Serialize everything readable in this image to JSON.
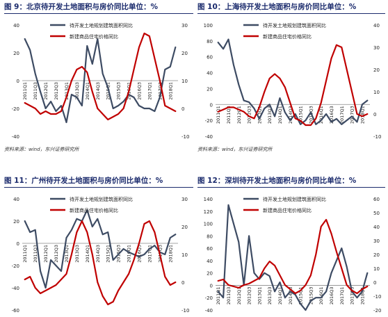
{
  "legend_labels": [
    "待开发土地规划建筑面积同比",
    "新建商品住宅价格同比"
  ],
  "colors": {
    "series1": "#3d4b63",
    "series2": "#c00000",
    "title": "#1a2a6c"
  },
  "source_note": "资料来源：wind，东兴证券研究所",
  "chart_data": [
    {
      "type": "line",
      "title": "图 9：北京待开发土地面积与房价同比单位：%",
      "categories": [
        "2011Q1",
        "2011Q2",
        "2011Q3",
        "2011Q4",
        "2012Q1",
        "2012Q2",
        "2012Q3",
        "2012Q4",
        "2013Q1",
        "2013Q2",
        "2013Q3",
        "2013Q4",
        "2014Q1",
        "2014Q2",
        "2014Q3",
        "2014Q4",
        "2015Q1",
        "2015Q2",
        "2015Q3",
        "2015Q4",
        "2016Q1",
        "2016Q2",
        "2016Q3",
        "2016Q4",
        "2017Q1",
        "2017Q2",
        "2017Q3",
        "2017Q4",
        "2018Q1",
        "2018Q2"
      ],
      "tick_labels": [
        "2011Q1",
        "2011Q3",
        "2012Q1",
        "2012Q3",
        "2013Q1",
        "2013Q3",
        "2014Q1",
        "2014Q3",
        "2015Q1",
        "2015Q3",
        "2016Q1",
        "2016Q3",
        "2017Q1",
        "2017Q3",
        "2018Q1"
      ],
      "yleft_ticks": [
        "40",
        "20",
        "0",
        "-20",
        "-40"
      ],
      "yright_ticks": [
        "30",
        "20",
        "10",
        "0",
        "-10"
      ],
      "yleft_lim": [
        -40,
        40
      ],
      "yright_lim": [
        -10,
        30
      ],
      "series": [
        {
          "name": "待开发土地规划建筑面积同比",
          "axis": "left",
          "values": [
            30,
            22,
            5,
            -8,
            -20,
            -15,
            -22,
            -18,
            -30,
            -10,
            -12,
            -18,
            25,
            12,
            30,
            5,
            -5,
            -20,
            -18,
            -15,
            -10,
            -12,
            -18,
            -20,
            -20,
            -22,
            -12,
            8,
            10,
            24
          ]
        },
        {
          "name": "新建商品住宅价格同比",
          "axis": "right",
          "values": [
            2,
            1,
            0,
            -2,
            -1,
            -2,
            -2,
            -1,
            4,
            10,
            14,
            15,
            13,
            6,
            0,
            -2,
            -4,
            -3,
            -2,
            0,
            6,
            14,
            22,
            27,
            26,
            18,
            10,
            1,
            0,
            -1
          ]
        }
      ]
    },
    {
      "type": "line",
      "title": "图 10：上海待开发土地面积与房价同比单位：%",
      "categories": [
        "2011Q1",
        "2011Q2",
        "2011Q3",
        "2011Q4",
        "2012Q1",
        "2012Q2",
        "2012Q3",
        "2012Q4",
        "2013Q1",
        "2013Q2",
        "2013Q3",
        "2013Q4",
        "2014Q1",
        "2014Q2",
        "2014Q3",
        "2014Q4",
        "2015Q1",
        "2015Q2",
        "2015Q3",
        "2015Q4",
        "2016Q1",
        "2016Q2",
        "2016Q3",
        "2016Q4",
        "2017Q1",
        "2017Q2",
        "2017Q3",
        "2017Q4",
        "2018Q1",
        "2018Q2"
      ],
      "tick_labels": [
        "2011Q1",
        "2011Q3",
        "2012Q1",
        "2012Q3",
        "2013Q1",
        "2013Q3",
        "2014Q1",
        "2014Q3",
        "2015Q1",
        "2015Q3",
        "2016Q1",
        "2016Q3",
        "2017Q1",
        "2017Q3",
        "2018Q1"
      ],
      "yleft_ticks": [
        "100",
        "80",
        "60",
        "40",
        "20",
        "0",
        "-20",
        "-40"
      ],
      "yright_ticks": [
        "40",
        "30",
        "20",
        "10",
        "0",
        "-10"
      ],
      "yleft_lim": [
        -40,
        100
      ],
      "yright_lim": [
        -10,
        40
      ],
      "series": [
        {
          "name": "待开发土地规划建筑面积同比",
          "axis": "left",
          "values": [
            78,
            70,
            82,
            50,
            25,
            5,
            3,
            -5,
            -18,
            -5,
            0,
            -15,
            8,
            -10,
            -20,
            -12,
            -25,
            -20,
            -10,
            -25,
            -20,
            -12,
            -22,
            -18,
            -25,
            -20,
            -15,
            -22,
            0,
            5
          ]
        },
        {
          "name": "新建商品住宅价格同比",
          "axis": "right",
          "values": [
            1,
            2,
            3,
            3,
            2,
            1,
            -1,
            -2,
            3,
            10,
            16,
            18,
            16,
            12,
            5,
            -2,
            -3,
            -5,
            -5,
            -2,
            5,
            15,
            25,
            31,
            30,
            20,
            10,
            0,
            -1,
            0
          ]
        }
      ]
    },
    {
      "type": "line",
      "title": "图 11：广州待开发土地面积与房价同比单位：%",
      "categories": [
        "2011Q1",
        "2011Q2",
        "2011Q3",
        "2011Q4",
        "2012Q1",
        "2012Q2",
        "2012Q3",
        "2012Q4",
        "2013Q1",
        "2013Q2",
        "2013Q3",
        "2013Q4",
        "2014Q1",
        "2014Q2",
        "2014Q3",
        "2014Q4",
        "2015Q1",
        "2015Q2",
        "2015Q3",
        "2015Q4",
        "2016Q1",
        "2016Q2",
        "2016Q3",
        "2016Q4",
        "2017Q1",
        "2017Q2",
        "2017Q3",
        "2017Q4",
        "2018Q1",
        "2018Q2"
      ],
      "tick_labels": [
        "2011Q1",
        "2011Q3",
        "2012Q1",
        "2012Q3",
        "2013Q1",
        "2013Q3",
        "2014Q1",
        "2014Q3",
        "2015Q1",
        "2015Q3",
        "2016Q1",
        "2016Q3",
        "2017Q1",
        "2017Q3",
        "2018Q1"
      ],
      "yleft_ticks": [
        "40",
        "20",
        "0",
        "-20",
        "-40",
        "-60"
      ],
      "yright_ticks": [
        "30",
        "20",
        "10",
        "0",
        "-10"
      ],
      "yleft_lim": [
        -60,
        40
      ],
      "yright_lim": [
        -10,
        30
      ],
      "series": [
        {
          "name": "待开发土地规划建筑面积同比",
          "axis": "left",
          "values": [
            20,
            10,
            12,
            -25,
            -40,
            -15,
            -20,
            -25,
            5,
            12,
            22,
            20,
            30,
            15,
            22,
            8,
            10,
            -15,
            -10,
            -5,
            -8,
            -10,
            -12,
            -10,
            -5,
            -2,
            -8,
            -10,
            5,
            8
          ]
        },
        {
          "name": "新建商品住宅价格同比",
          "axis": "right",
          "values": [
            1,
            2,
            -2,
            -4,
            -3,
            -2,
            -1,
            1,
            3,
            10,
            18,
            22,
            18,
            10,
            0,
            -5,
            -8,
            -7,
            -3,
            0,
            3,
            8,
            14,
            21,
            22,
            18,
            10,
            2,
            -1,
            0
          ]
        }
      ]
    },
    {
      "type": "line",
      "title": "图 12：深圳待开发土地面积与房价同比单位：%",
      "categories": [
        "2011Q1",
        "2011Q2",
        "2011Q3",
        "2011Q4",
        "2012Q1",
        "2012Q2",
        "2012Q3",
        "2012Q4",
        "2013Q1",
        "2013Q2",
        "2013Q3",
        "2013Q4",
        "2014Q1",
        "2014Q2",
        "2014Q3",
        "2014Q4",
        "2015Q1",
        "2015Q2",
        "2015Q3",
        "2015Q4",
        "2016Q1",
        "2016Q2",
        "2016Q3",
        "2016Q4",
        "2017Q1",
        "2017Q2",
        "2017Q3",
        "2017Q4",
        "2018Q1",
        "2018Q2"
      ],
      "tick_labels": [
        "2011Q1",
        "2011Q3",
        "2012Q1",
        "2012Q3",
        "2013Q1",
        "2013Q3",
        "2014Q1",
        "2014Q3",
        "2015Q1",
        "2015Q3",
        "2016Q1",
        "2016Q3",
        "2017Q1",
        "2017Q3",
        "2018Q1"
      ],
      "yleft_ticks": [
        "140",
        "120",
        "100",
        "80",
        "60",
        "40",
        "20",
        "0",
        "-20",
        "-40"
      ],
      "yright_ticks": [
        "60",
        "50",
        "40",
        "30",
        "20",
        "10",
        "0",
        "-10",
        "-20"
      ],
      "yleft_lim": [
        -40,
        140
      ],
      "yright_lim": [
        -20,
        60
      ],
      "series": [
        {
          "name": "待开发土地规划建筑面积同比",
          "axis": "left",
          "values": [
            -10,
            -20,
            130,
            100,
            70,
            0,
            80,
            20,
            10,
            20,
            15,
            -10,
            5,
            -20,
            -10,
            -15,
            -30,
            -40,
            -25,
            -20,
            -20,
            -10,
            20,
            40,
            60,
            30,
            -10,
            -20,
            -10,
            20
          ]
        },
        {
          "name": "新建商品住宅价格同比",
          "axis": "right",
          "values": [
            1,
            2,
            -2,
            -3,
            -4,
            -2,
            -1,
            1,
            3,
            10,
            15,
            12,
            5,
            -2,
            -5,
            -8,
            -6,
            -2,
            5,
            20,
            40,
            45,
            35,
            22,
            10,
            -2,
            -6,
            -8,
            -5,
            -3
          ]
        }
      ]
    }
  ]
}
